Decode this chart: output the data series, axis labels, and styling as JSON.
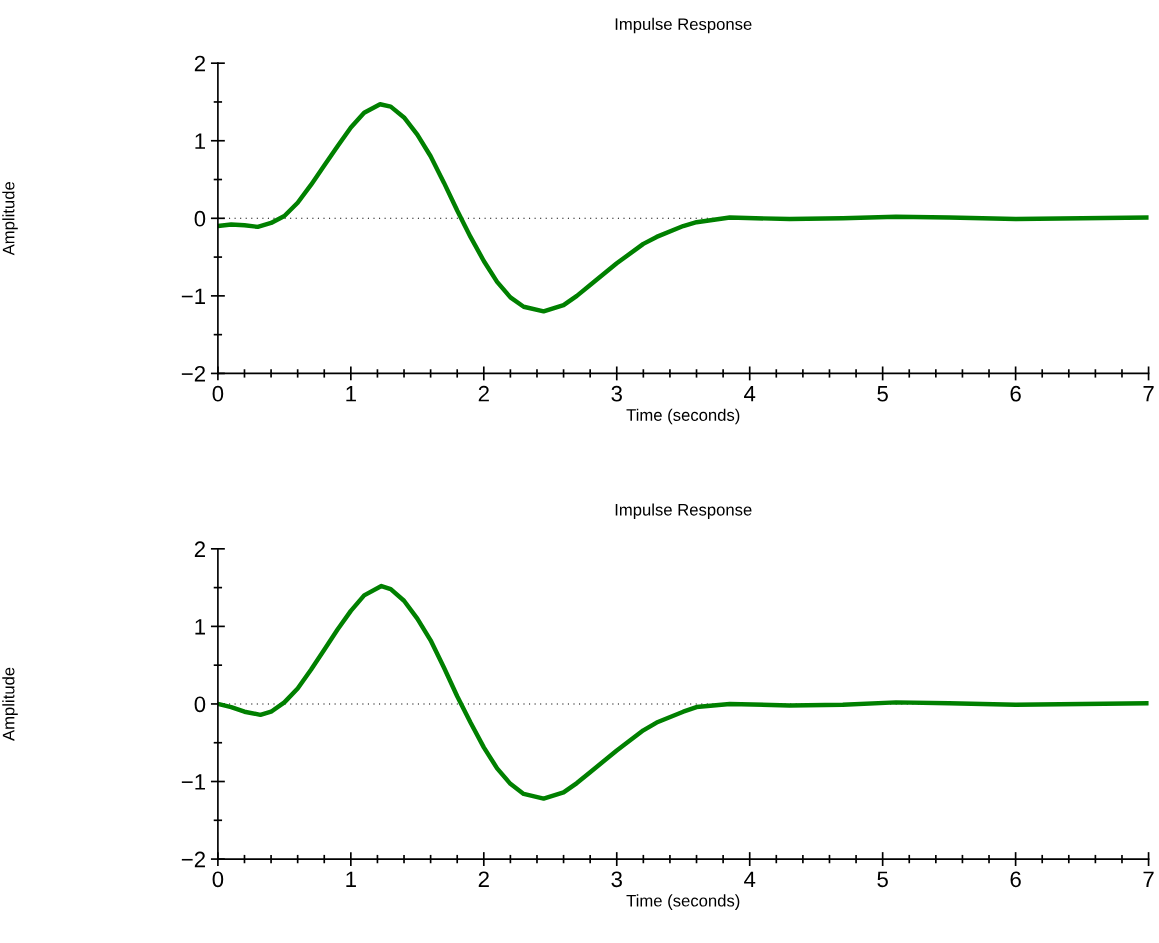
{
  "chart_data": [
    {
      "type": "line",
      "title": "Impulse Response",
      "xlabel": "Time (seconds)",
      "ylabel": "Amplitude",
      "xlim": [
        0,
        7
      ],
      "ylim": [
        -2,
        2
      ],
      "xticks": [
        0,
        1,
        2,
        3,
        4,
        5,
        6,
        7
      ],
      "yticks": [
        -2,
        -1,
        0,
        1,
        2
      ],
      "grid": false,
      "legend": false,
      "line_style": "solid",
      "marker": "none",
      "ref_lines": [
        {
          "axis": "y",
          "value": 0,
          "line_style": "dotted",
          "color": "#000000"
        }
      ],
      "series": [
        {
          "color": "#008000",
          "x": [
            0,
            0.1,
            0.2,
            0.3,
            0.4,
            0.5,
            0.6,
            0.7,
            0.8,
            0.9,
            1.0,
            1.1,
            1.22,
            1.3,
            1.4,
            1.5,
            1.6,
            1.7,
            1.8,
            1.9,
            2.0,
            2.1,
            2.2,
            2.3,
            2.45,
            2.6,
            2.7,
            2.8,
            3.0,
            3.2,
            3.3,
            3.5,
            3.6,
            3.85,
            4.3,
            4.7,
            5.1,
            5.5,
            6.0,
            6.5,
            7.0
          ],
          "values": [
            -0.1,
            -0.08,
            -0.09,
            -0.11,
            -0.06,
            0.03,
            0.2,
            0.43,
            0.68,
            0.93,
            1.17,
            1.36,
            1.47,
            1.44,
            1.3,
            1.08,
            0.8,
            0.46,
            0.1,
            -0.24,
            -0.55,
            -0.82,
            -1.02,
            -1.14,
            -1.2,
            -1.12,
            -1.0,
            -0.86,
            -0.58,
            -0.33,
            -0.24,
            -0.1,
            -0.05,
            0.01,
            -0.01,
            0.0,
            0.02,
            0.01,
            -0.01,
            0.0,
            0.01
          ]
        }
      ]
    },
    {
      "type": "line",
      "title": "Impulse Response",
      "xlabel": "Time (seconds)",
      "ylabel": "Amplitude",
      "xlim": [
        0,
        7
      ],
      "ylim": [
        -2,
        2
      ],
      "xticks": [
        0,
        1,
        2,
        3,
        4,
        5,
        6,
        7
      ],
      "yticks": [
        -2,
        -1,
        0,
        1,
        2
      ],
      "grid": false,
      "legend": false,
      "line_style": "solid",
      "marker": "none",
      "ref_lines": [
        {
          "axis": "y",
          "value": 0,
          "line_style": "dotted",
          "color": "#000000"
        }
      ],
      "series": [
        {
          "color": "#008000",
          "x": [
            0,
            0.1,
            0.2,
            0.32,
            0.4,
            0.5,
            0.6,
            0.7,
            0.8,
            0.9,
            1.0,
            1.1,
            1.23,
            1.3,
            1.4,
            1.5,
            1.6,
            1.7,
            1.8,
            1.9,
            2.0,
            2.1,
            2.2,
            2.3,
            2.45,
            2.6,
            2.7,
            2.8,
            3.0,
            3.2,
            3.3,
            3.5,
            3.6,
            3.85,
            4.3,
            4.7,
            5.1,
            5.5,
            6.0,
            6.5,
            7.0
          ],
          "values": [
            0.0,
            -0.04,
            -0.1,
            -0.14,
            -0.1,
            0.02,
            0.2,
            0.44,
            0.7,
            0.96,
            1.2,
            1.4,
            1.52,
            1.48,
            1.33,
            1.1,
            0.82,
            0.47,
            0.1,
            -0.24,
            -0.56,
            -0.83,
            -1.03,
            -1.16,
            -1.22,
            -1.14,
            -1.02,
            -0.88,
            -0.6,
            -0.34,
            -0.24,
            -0.1,
            -0.04,
            0.0,
            -0.02,
            -0.01,
            0.02,
            0.01,
            -0.01,
            0.0,
            0.01
          ]
        }
      ]
    }
  ]
}
